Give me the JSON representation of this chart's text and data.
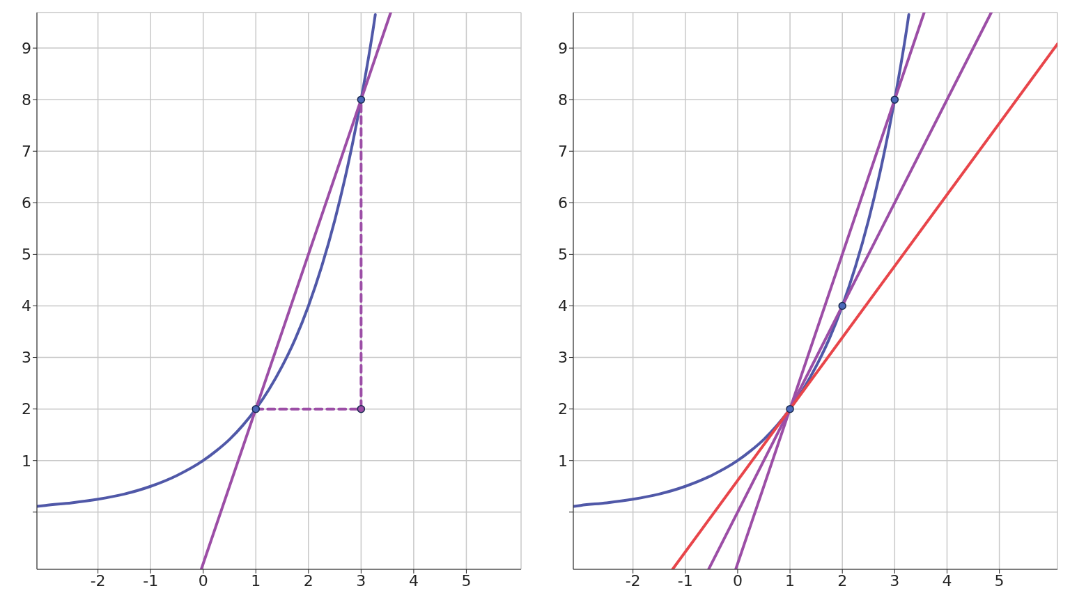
{
  "chart_data": [
    {
      "type": "line",
      "xlim": [
        -3.16,
        6.04
      ],
      "ylim": [
        -1.11,
        9.69
      ],
      "xticks": [
        -2,
        -1,
        0,
        1,
        2,
        3,
        4,
        5
      ],
      "yticks": [
        {
          "value": 0,
          "label": null
        },
        1,
        2,
        3,
        4,
        5,
        6,
        7,
        8,
        9
      ],
      "grid": true,
      "legend": false,
      "series": [
        {
          "color": "#5058a8",
          "x": [
            -3.16,
            -3,
            -2.5,
            -2,
            -1.5,
            -1,
            -0.5,
            0,
            0.25,
            0.5,
            0.75,
            1,
            1.25,
            1.5,
            1.75,
            2,
            2.25,
            2.5,
            2.75,
            3,
            3.25,
            3.27
          ],
          "values": [
            0.11,
            0.13,
            0.18,
            0.25,
            0.35,
            0.5,
            0.71,
            1,
            1.19,
            1.41,
            1.68,
            2,
            2.38,
            2.83,
            3.36,
            4,
            4.76,
            5.66,
            6.73,
            8,
            9.51,
            9.65
          ]
        },
        {
          "color": "#9c4ea6",
          "x": [
            -0.037,
            3.563
          ],
          "values": [
            -1.11,
            9.69
          ]
        },
        {
          "color": "#9c4ea6",
          "line_style": "dashed",
          "x": [
            1,
            3,
            3
          ],
          "values": [
            2,
            2,
            8
          ]
        },
        {
          "type": "scatter",
          "color": "#4a68b8",
          "x": [
            1,
            3
          ],
          "values": [
            2,
            8
          ]
        },
        {
          "type": "scatter",
          "color": "#9c4ea6",
          "x": [
            3
          ],
          "values": [
            2
          ]
        }
      ]
    },
    {
      "type": "line",
      "xlim": [
        -3.14,
        6.11
      ],
      "ylim": [
        -1.11,
        9.69
      ],
      "xticks": [
        -2,
        -1,
        0,
        1,
        2,
        3,
        4,
        5
      ],
      "yticks": [
        {
          "value": 0,
          "label": null
        },
        1,
        2,
        3,
        4,
        5,
        6,
        7,
        8,
        9
      ],
      "grid": true,
      "legend": false,
      "series": [
        {
          "color": "#5058a8",
          "x": [
            -3.14,
            -3,
            -2.5,
            -2,
            -1.5,
            -1,
            -0.5,
            0,
            0.25,
            0.5,
            0.75,
            1,
            1.25,
            1.5,
            1.75,
            2,
            2.25,
            2.5,
            2.75,
            3,
            3.25,
            3.27
          ],
          "values": [
            0.11,
            0.13,
            0.18,
            0.25,
            0.35,
            0.5,
            0.71,
            1,
            1.19,
            1.41,
            1.68,
            2,
            2.38,
            2.83,
            3.36,
            4,
            4.76,
            5.66,
            6.73,
            8,
            9.51,
            9.65
          ]
        },
        {
          "color": "#9c4ea6",
          "x": [
            -0.037,
            3.563
          ],
          "values": [
            -1.11,
            9.69
          ]
        },
        {
          "color": "#9c4ea6",
          "x": [
            -0.555,
            4.845
          ],
          "values": [
            -1.11,
            9.69
          ]
        },
        {
          "color": "#e8454a",
          "x": [
            -1.244,
            6.11
          ],
          "values": [
            -1.11,
            9.08
          ]
        },
        {
          "type": "scatter",
          "color": "#4a68b8",
          "x": [
            1,
            2,
            3
          ],
          "values": [
            2,
            4,
            8
          ]
        }
      ]
    }
  ]
}
